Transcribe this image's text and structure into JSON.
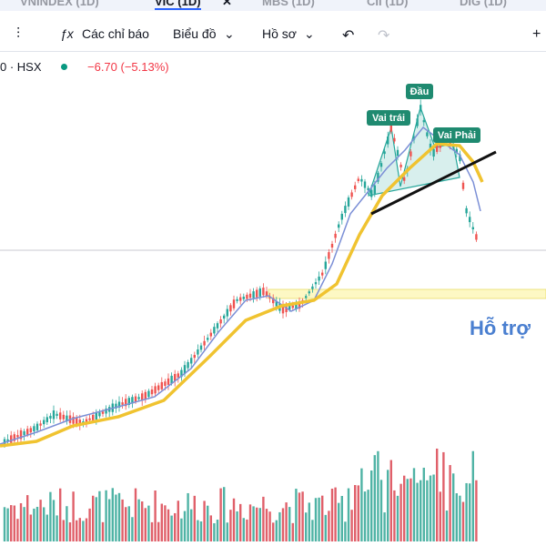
{
  "tabs": [
    "VNINDEX (1D)",
    "VIC (1D)",
    "MBS (1D)",
    "CII (1D)",
    "DIG (1D)"
  ],
  "toolbar": {
    "indicators": "Các chỉ báo",
    "chart": "Biểu đồ",
    "profile": "Hồ sơ"
  },
  "symbol": {
    "exchange": "0 · HSX",
    "change": "−6.70 (−5.13%)"
  },
  "annotations": {
    "left_shoulder": "Vai trái",
    "head": "Đầu",
    "right_shoulder": "Vai Phải",
    "support": "Hỗ trợ"
  }
}
